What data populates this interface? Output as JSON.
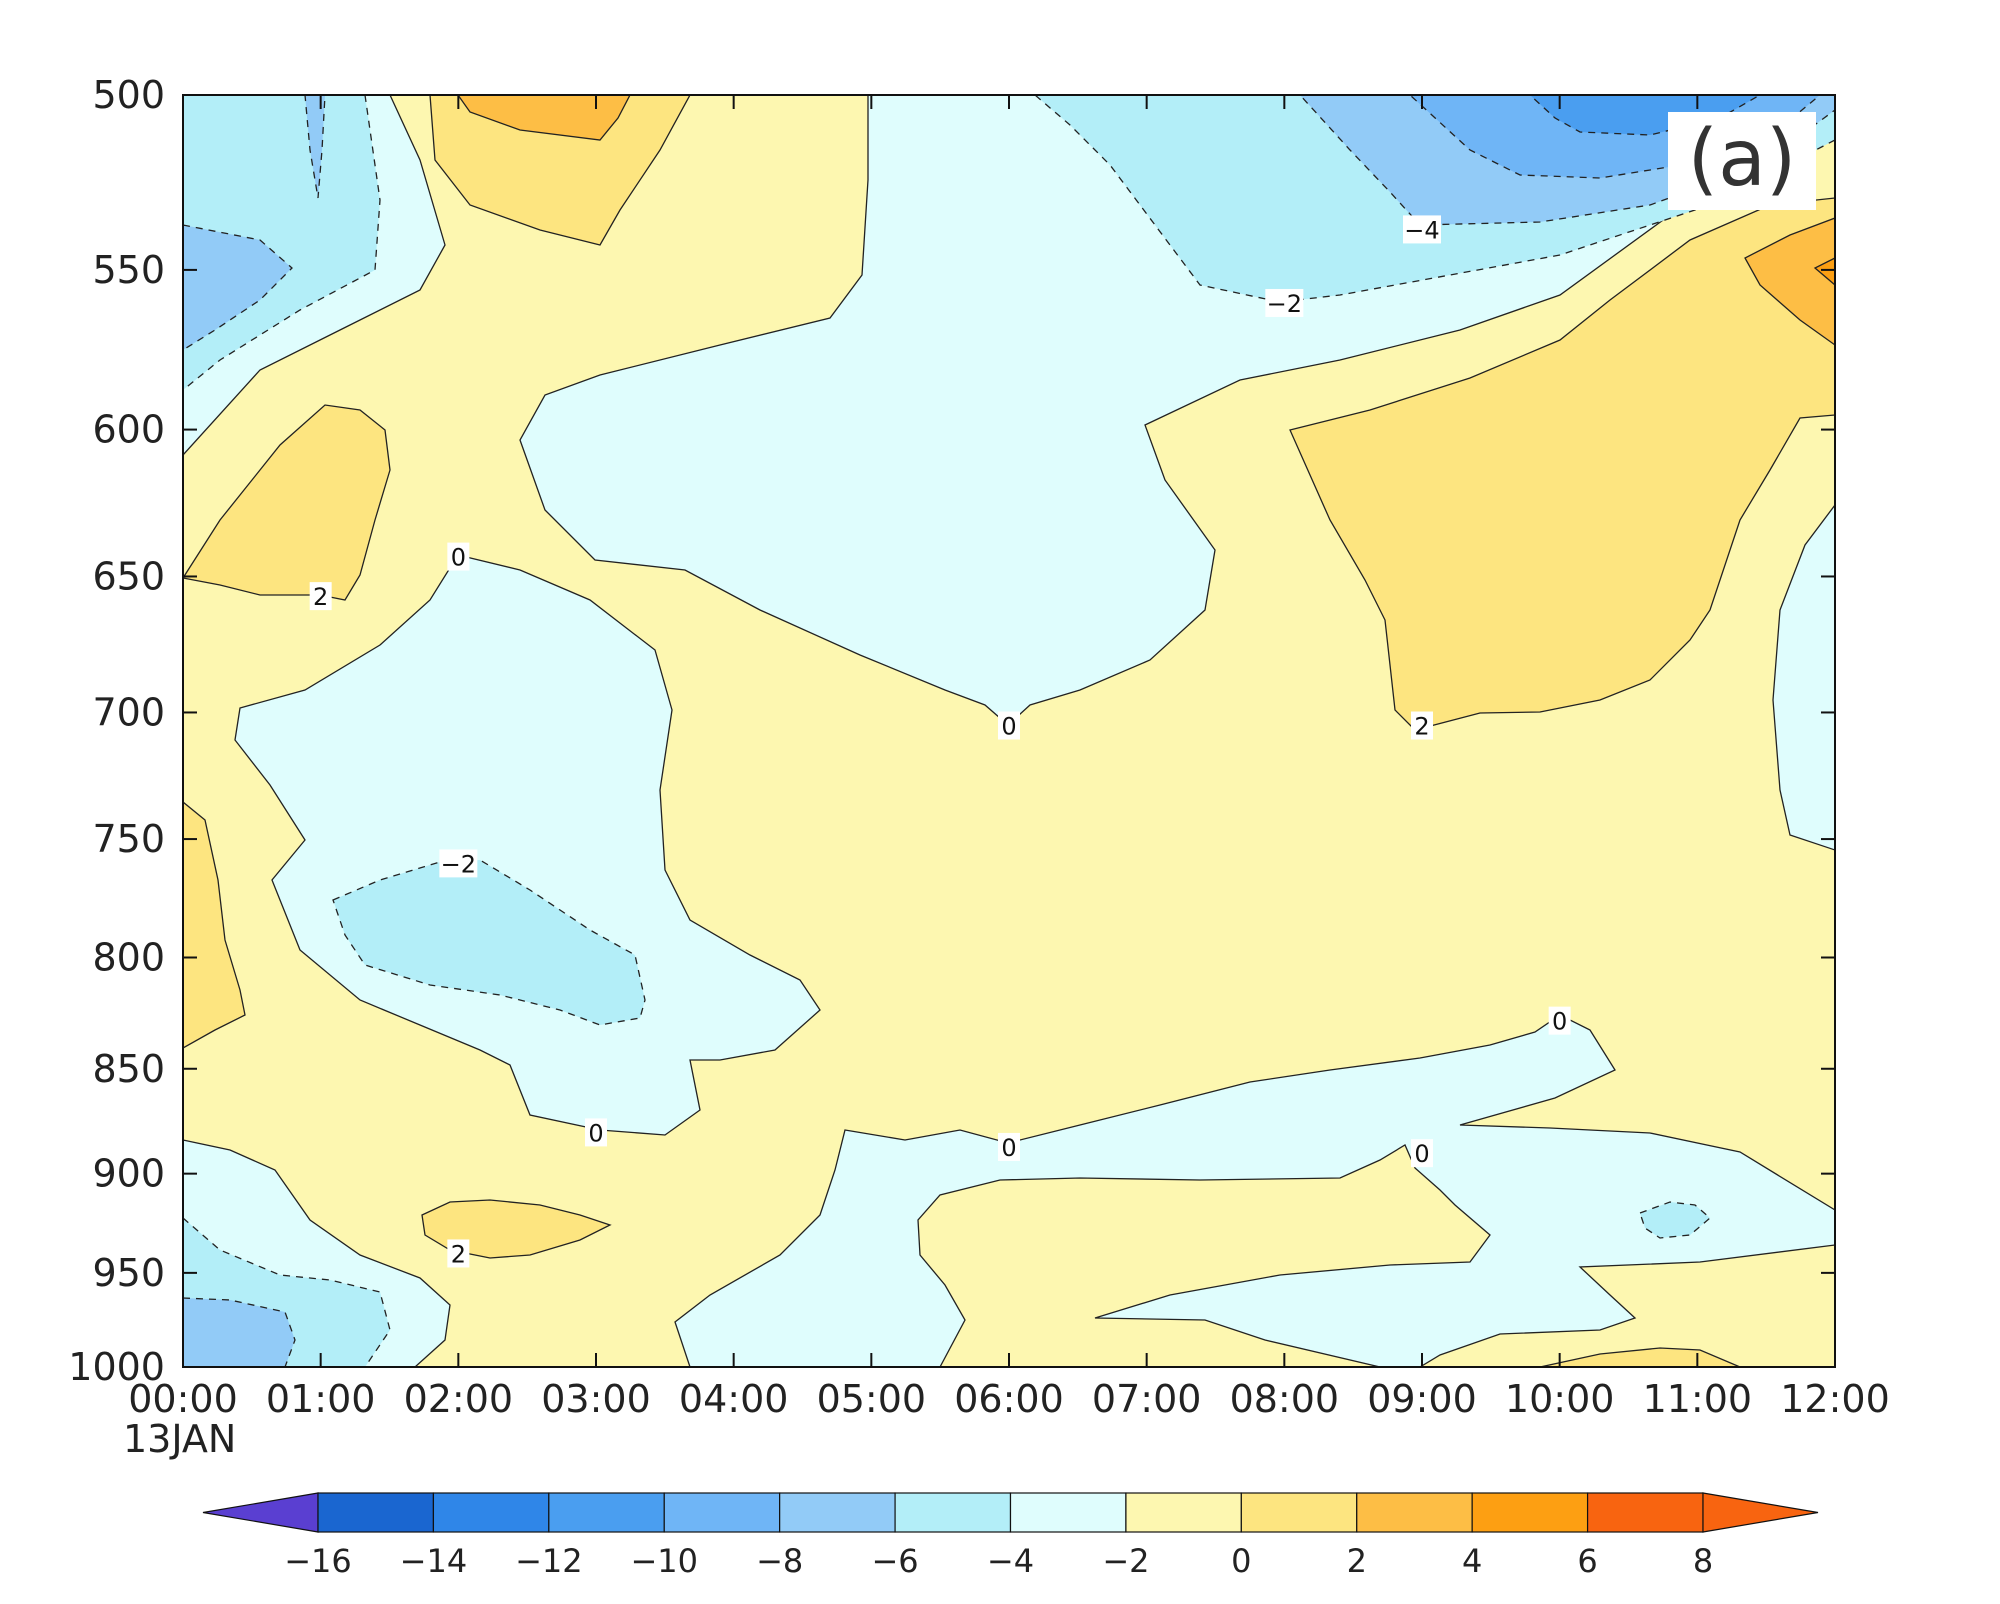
{
  "chart_data": {
    "type": "heatmap",
    "panel_label": "(a)",
    "x_ticks": [
      "00:00",
      "01:00",
      "02:00",
      "03:00",
      "04:00",
      "05:00",
      "06:00",
      "07:00",
      "08:00",
      "09:00",
      "10:00",
      "11:00",
      "12:00"
    ],
    "x_date_label": "13JAN",
    "y_ticks": [
      "500",
      "550",
      "600",
      "650",
      "700",
      "750",
      "800",
      "850",
      "900",
      "950",
      "1000"
    ],
    "y_tick_values": [
      500,
      550,
      600,
      650,
      700,
      750,
      800,
      850,
      900,
      950,
      1000
    ],
    "y_scale": "log",
    "y_inverted": true,
    "ylim": [
      500,
      1000
    ],
    "xlim_hours": [
      0,
      12
    ],
    "colorbar": {
      "levels": [
        -16,
        -14,
        -12,
        -10,
        -8,
        -6,
        -4,
        -2,
        0,
        2,
        4,
        6,
        8
      ],
      "labels": [
        "−16",
        "−14",
        "−12",
        "−10",
        "−8",
        "−6",
        "−4",
        "−2",
        "0",
        "2",
        "4",
        "6",
        "8"
      ],
      "colors": [
        "#5a3fd1",
        "#1a66d0",
        "#2f86e8",
        "#4a9ef0",
        "#6fb5f6",
        "#92cbf7",
        "#b3eef8",
        "#dffdfd",
        "#fdf7b0",
        "#fde580",
        "#fdbe45",
        "#fd9f12",
        "#f86410"
      ],
      "extend": "both"
    },
    "contour_labels": [
      {
        "text": "−4",
        "time_h": 9.0,
        "p": 538
      },
      {
        "text": "−2",
        "time_h": 8.0,
        "p": 560
      },
      {
        "text": "0",
        "time_h": 2.0,
        "p": 643
      },
      {
        "text": "2",
        "time_h": 1.0,
        "p": 657
      },
      {
        "text": "0",
        "time_h": 6.0,
        "p": 705
      },
      {
        "text": "2",
        "time_h": 9.0,
        "p": 705
      },
      {
        "text": "−2",
        "time_h": 2.0,
        "p": 760
      },
      {
        "text": "0",
        "time_h": 10.0,
        "p": 828
      },
      {
        "text": "0",
        "time_h": 3.0,
        "p": 880
      },
      {
        "text": "0",
        "time_h": 6.0,
        "p": 887
      },
      {
        "text": "0",
        "time_h": 9.0,
        "p": 890
      },
      {
        "text": "2",
        "time_h": 2.0,
        "p": 940
      }
    ]
  }
}
